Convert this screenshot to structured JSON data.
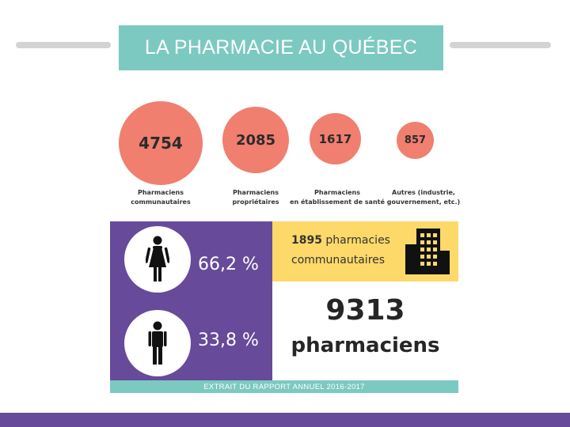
{
  "title": "LA PHARMACIE AU QUÉBEC",
  "colors": {
    "accent_teal": "#7cc9c1",
    "circle_coral": "#f07f70",
    "panel_purple": "#674a99",
    "highlight_yellow": "#fdd96a"
  },
  "stats": [
    {
      "value": "4754",
      "label_lines": [
        "Pharmaciens",
        "communautaires"
      ]
    },
    {
      "value": "2085",
      "label_lines": [
        "Pharmaciens",
        "propriétaires"
      ]
    },
    {
      "value": "1617",
      "label_lines": [
        "Pharmaciens",
        "en établissement de santé"
      ]
    },
    {
      "value": "857",
      "label_lines": [
        "Autres (industrie,",
        "gouvernement, etc.)"
      ]
    }
  ],
  "gender": {
    "female_pct": "66,2 %",
    "male_pct": "33,8 %",
    "female_icon": "woman-icon",
    "male_icon": "man-icon"
  },
  "pharmacies": {
    "count": "1895",
    "line1_rest": " pharmacies",
    "line2": "communautaires",
    "icon": "building-icon"
  },
  "total": {
    "value": "9313",
    "word": "pharmaciens"
  },
  "footer": "EXTRAIT DU RAPPORT ANNUEL 2016-2017"
}
